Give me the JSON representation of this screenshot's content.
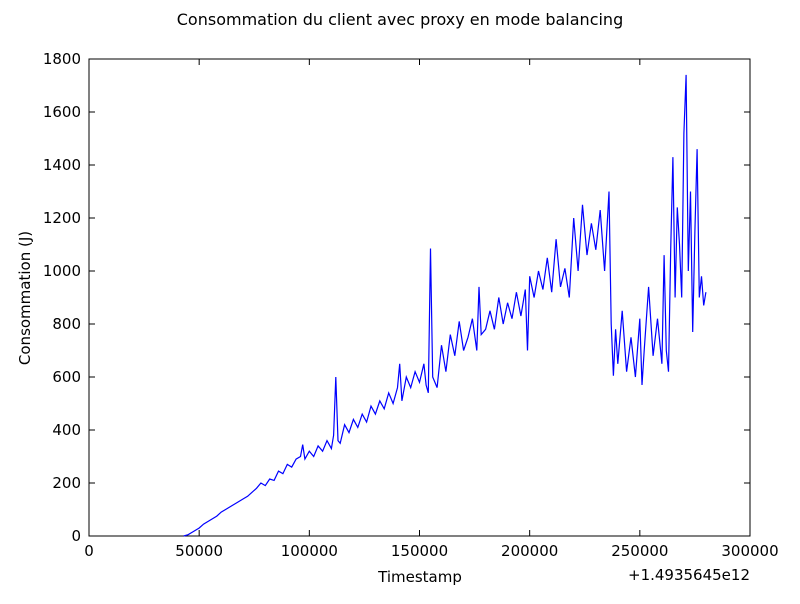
{
  "chart_data": {
    "type": "line",
    "title": "Consommation du client avec proxy en mode balancing",
    "xlabel": "Timestamp",
    "ylabel": "Consommation (J)",
    "x_offset_label": "+1.4935645e12",
    "x": [
      43000,
      45000,
      47000,
      50000,
      52000,
      55000,
      58000,
      60000,
      62000,
      65000,
      67000,
      70000,
      72000,
      74000,
      76000,
      78000,
      80000,
      82000,
      84000,
      86000,
      88000,
      90000,
      92000,
      94000,
      96000,
      97000,
      98000,
      100000,
      102000,
      104000,
      106000,
      108000,
      110000,
      111000,
      112000,
      113000,
      114000,
      116000,
      118000,
      120000,
      122000,
      124000,
      126000,
      128000,
      130000,
      132000,
      134000,
      136000,
      138000,
      140000,
      141000,
      142000,
      144000,
      146000,
      148000,
      150000,
      152000,
      153000,
      154000,
      155000,
      156000,
      158000,
      160000,
      162000,
      164000,
      166000,
      168000,
      170000,
      172000,
      174000,
      176000,
      177000,
      178000,
      180000,
      182000,
      184000,
      186000,
      188000,
      190000,
      192000,
      194000,
      196000,
      198000,
      199000,
      200000,
      202000,
      204000,
      206000,
      208000,
      210000,
      212000,
      214000,
      216000,
      218000,
      220000,
      222000,
      224000,
      226000,
      228000,
      230000,
      232000,
      234000,
      236000,
      237000,
      238000,
      239000,
      240000,
      242000,
      244000,
      246000,
      248000,
      250000,
      251000,
      252000,
      254000,
      256000,
      258000,
      260000,
      261000,
      262000,
      263000,
      264000,
      265000,
      266000,
      267000,
      268000,
      269000,
      270000,
      271000,
      272000,
      273000,
      274000,
      275000,
      276000,
      277000,
      278000,
      279000,
      280000
    ],
    "series": [
      {
        "name": "Consommation",
        "color": "#0000ff",
        "values": [
          0,
          5,
          15,
          30,
          45,
          60,
          75,
          90,
          100,
          115,
          125,
          140,
          150,
          165,
          180,
          200,
          190,
          215,
          210,
          245,
          235,
          270,
          260,
          290,
          300,
          345,
          290,
          320,
          300,
          340,
          320,
          360,
          330,
          380,
          600,
          360,
          350,
          420,
          390,
          440,
          410,
          460,
          430,
          490,
          460,
          510,
          480,
          540,
          500,
          560,
          650,
          510,
          600,
          560,
          620,
          580,
          650,
          570,
          540,
          1085,
          600,
          560,
          720,
          620,
          760,
          680,
          810,
          700,
          750,
          820,
          700,
          940,
          760,
          780,
          850,
          780,
          900,
          800,
          880,
          820,
          920,
          830,
          930,
          700,
          980,
          900,
          1000,
          930,
          1050,
          920,
          1120,
          940,
          1010,
          900,
          1200,
          1000,
          1250,
          1060,
          1180,
          1080,
          1230,
          1000,
          1300,
          800,
          605,
          780,
          650,
          850,
          620,
          750,
          600,
          820,
          570,
          700,
          940,
          680,
          820,
          650,
          1060,
          700,
          620,
          1080,
          1430,
          900,
          1240,
          1100,
          900,
          1520,
          1740,
          1000,
          1300,
          770,
          1150,
          1460,
          900,
          980,
          870,
          920
        ]
      }
    ],
    "xlim": [
      0,
      300000
    ],
    "ylim": [
      0,
      1800
    ],
    "xticks": [
      0,
      50000,
      100000,
      150000,
      200000,
      250000,
      300000
    ],
    "yticks": [
      0,
      200,
      400,
      600,
      800,
      1000,
      1200,
      1400,
      1600,
      1800
    ]
  }
}
